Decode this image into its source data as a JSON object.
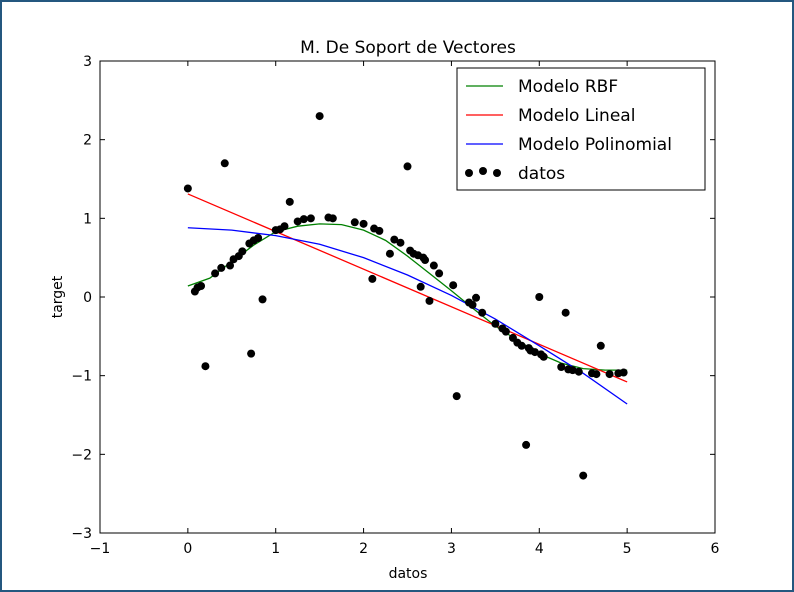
{
  "chart_data": {
    "type": "scatter",
    "title": "M. De Soport de Vectores",
    "xlabel": "datos",
    "ylabel": "target",
    "xlim": [
      -1,
      6
    ],
    "ylim": [
      -3,
      3
    ],
    "xticks": [
      -1,
      0,
      1,
      2,
      3,
      4,
      5,
      6
    ],
    "yticks": [
      -3,
      -2,
      -1,
      0,
      1,
      2,
      3
    ],
    "xtick_labels": [
      "−1",
      "0",
      "1",
      "2",
      "3",
      "4",
      "5",
      "6"
    ],
    "ytick_labels": [
      "−3",
      "−2",
      "−1",
      "0",
      "1",
      "2",
      "3"
    ],
    "grid": false,
    "legend_position": "top-right",
    "series": [
      {
        "name": "Modelo RBF",
        "kind": "line",
        "color": "#008000",
        "x": [
          0,
          0.25,
          0.5,
          0.75,
          1.0,
          1.25,
          1.5,
          1.75,
          2.0,
          2.25,
          2.5,
          2.75,
          3.0,
          3.25,
          3.5,
          3.75,
          4.0,
          4.25,
          4.5,
          4.75,
          5.0
        ],
        "y": [
          0.14,
          0.24,
          0.45,
          0.66,
          0.83,
          0.9,
          0.93,
          0.92,
          0.85,
          0.72,
          0.52,
          0.3,
          0.08,
          -0.15,
          -0.37,
          -0.55,
          -0.72,
          -0.84,
          -0.91,
          -0.93,
          -0.93
        ]
      },
      {
        "name": "Modelo Lineal",
        "kind": "line",
        "color": "#ff0000",
        "x": [
          0,
          5.0
        ],
        "y": [
          1.31,
          -1.08
        ]
      },
      {
        "name": "Modelo Polinomial",
        "kind": "line",
        "color": "#0000ff",
        "x": [
          0,
          0.5,
          1.0,
          1.5,
          2.0,
          2.5,
          3.0,
          3.5,
          4.0,
          4.5,
          5.0
        ],
        "y": [
          0.88,
          0.85,
          0.78,
          0.67,
          0.5,
          0.28,
          0.02,
          -0.28,
          -0.62,
          -0.97,
          -1.36
        ]
      },
      {
        "name": "datos",
        "kind": "scatter",
        "color": "#000000",
        "x": [
          0.0,
          0.08,
          0.11,
          0.15,
          0.2,
          0.31,
          0.38,
          0.42,
          0.48,
          0.52,
          0.58,
          0.62,
          0.7,
          0.72,
          0.75,
          0.8,
          0.85,
          1.0,
          1.05,
          1.1,
          1.16,
          1.25,
          1.32,
          1.4,
          1.5,
          1.6,
          1.65,
          1.9,
          2.0,
          2.1,
          2.12,
          2.18,
          2.3,
          2.35,
          2.42,
          2.5,
          2.53,
          2.57,
          2.62,
          2.65,
          2.68,
          2.7,
          2.75,
          2.8,
          2.86,
          3.02,
          3.06,
          3.2,
          3.24,
          3.28,
          3.35,
          3.5,
          3.58,
          3.62,
          3.7,
          3.75,
          3.8,
          3.85,
          3.88,
          3.9,
          3.95,
          4.0,
          4.02,
          4.05,
          4.25,
          4.3,
          4.33,
          4.38,
          4.45,
          4.5,
          4.6,
          4.65,
          4.7,
          4.8,
          4.9,
          4.96
        ],
        "y": [
          1.38,
          0.07,
          0.12,
          0.14,
          -0.88,
          0.3,
          0.37,
          1.7,
          0.4,
          0.48,
          0.52,
          0.58,
          0.68,
          -0.72,
          0.72,
          0.75,
          -0.03,
          0.85,
          0.86,
          0.9,
          1.21,
          0.96,
          0.99,
          1.0,
          2.3,
          1.01,
          1.0,
          0.95,
          0.93,
          0.23,
          0.87,
          0.84,
          0.55,
          0.73,
          0.69,
          1.66,
          0.59,
          0.55,
          0.53,
          0.13,
          0.5,
          0.47,
          -0.05,
          0.4,
          0.3,
          0.15,
          -1.26,
          -0.07,
          -0.1,
          -0.01,
          -0.2,
          -0.34,
          -0.4,
          -0.44,
          -0.52,
          -0.58,
          -0.62,
          -1.88,
          -0.65,
          -0.68,
          -0.7,
          0.0,
          -0.73,
          -0.76,
          -0.89,
          -0.2,
          -0.92,
          -0.93,
          -0.95,
          -2.27,
          -0.97,
          -0.98,
          -0.62,
          -0.98,
          -0.97,
          -0.96
        ]
      }
    ]
  }
}
